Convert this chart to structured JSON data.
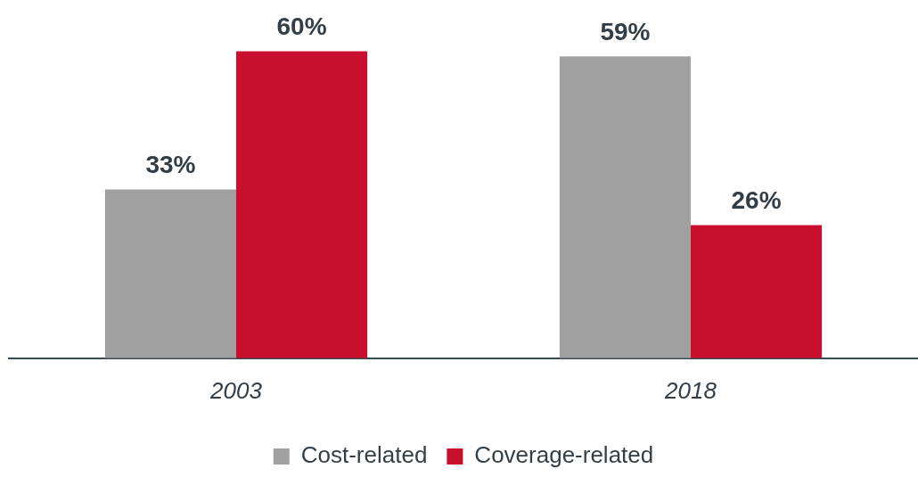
{
  "chart_data": {
    "type": "bar",
    "categories": [
      "2003",
      "2018"
    ],
    "series": [
      {
        "name": "Cost-related",
        "color": "#a0a0a0",
        "values": [
          33,
          59
        ],
        "value_labels": [
          "33%",
          "59%"
        ]
      },
      {
        "name": "Coverage-related",
        "color": "#c8102e",
        "values": [
          60,
          26
        ],
        "value_labels": [
          "60%",
          "26%"
        ]
      }
    ],
    "legend": "bottom",
    "grid": false,
    "tick_labels": "x"
  }
}
